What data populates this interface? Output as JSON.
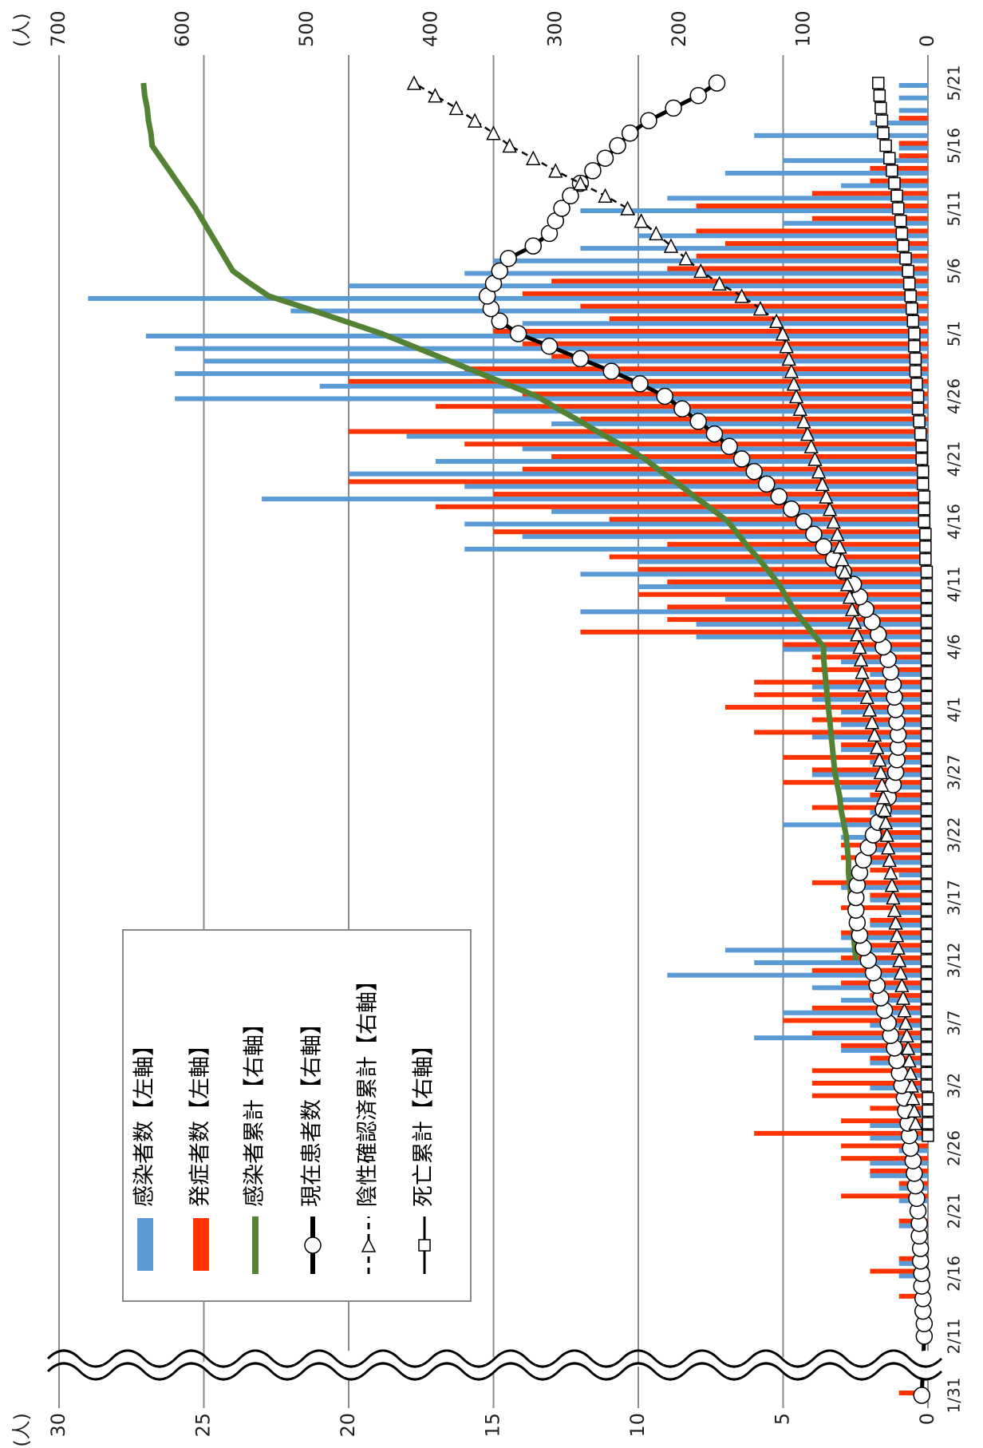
{
  "chart_data": {
    "type": "combo",
    "ylabel": "(人)",
    "y2label": "(人)",
    "categories": [
      "1/31",
      "2/11",
      null,
      null,
      null,
      null,
      "2/16",
      null,
      null,
      null,
      null,
      "2/21",
      null,
      null,
      null,
      null,
      "2/26",
      null,
      null,
      null,
      null,
      "3/2",
      null,
      null,
      null,
      null,
      "3/7",
      null,
      null,
      null,
      null,
      "3/12",
      null,
      null,
      null,
      null,
      "3/17",
      null,
      null,
      null,
      null,
      "3/22",
      null,
      null,
      null,
      null,
      "3/27",
      null,
      null,
      null,
      null,
      "4/1",
      null,
      null,
      null,
      null,
      "4/6",
      null,
      null,
      null,
      null,
      "4/11",
      null,
      null,
      null,
      null,
      "4/16",
      null,
      null,
      null,
      null,
      "4/21",
      null,
      null,
      null,
      null,
      "4/26",
      null,
      null,
      null,
      null,
      "5/1",
      null,
      null,
      null,
      null,
      "5/6",
      null,
      null,
      null,
      null,
      "5/11",
      null,
      null,
      null,
      null,
      "5/16",
      null,
      null,
      null,
      null,
      "5/21"
    ],
    "ylim": [
      0,
      30
    ],
    "yticks": [
      0,
      5,
      10,
      15,
      20,
      25,
      30
    ],
    "y2lim": [
      0,
      700
    ],
    "y2ticks": [
      0,
      100,
      200,
      300,
      400,
      500,
      600,
      700
    ],
    "grid": true,
    "series": [
      {
        "name": "感染者数【左軸】",
        "type": "bar",
        "color": "#5b9bd5",
        "values": [
          0,
          0,
          0,
          0,
          0,
          0,
          1,
          1,
          0,
          0,
          1,
          0,
          1,
          1,
          2,
          2,
          1,
          2,
          2,
          1,
          0,
          2,
          1,
          2,
          3,
          6,
          2,
          5,
          3,
          4,
          9,
          6,
          7,
          3,
          2,
          1,
          2,
          3,
          1,
          2,
          2,
          3,
          5,
          2,
          3,
          3,
          4,
          2,
          3,
          4,
          3,
          3,
          4,
          4,
          2,
          3,
          5,
          8,
          8,
          12,
          7,
          10,
          12,
          10,
          16,
          14,
          16,
          13,
          23,
          16,
          20,
          17,
          14,
          18,
          13,
          15,
          26,
          21,
          26,
          25,
          26,
          27,
          14,
          22,
          29,
          20,
          16,
          15,
          12,
          10,
          5,
          12,
          9,
          3,
          7,
          5,
          1,
          6,
          2,
          1,
          1,
          1
        ]
      },
      {
        "name": "発症者数【左軸】",
        "type": "bar",
        "color": "#ff3300",
        "values": [
          1,
          0,
          0,
          0,
          1,
          0,
          2,
          1,
          0,
          0,
          1,
          0,
          3,
          1,
          2,
          3,
          3,
          6,
          3,
          2,
          4,
          4,
          4,
          2,
          3,
          4,
          5,
          4,
          2,
          3,
          4,
          3,
          2,
          3,
          2,
          3,
          2,
          4,
          2,
          3,
          3,
          2,
          3,
          4,
          2,
          5,
          4,
          5,
          3,
          6,
          4,
          7,
          6,
          6,
          4,
          4,
          5,
          12,
          9,
          9,
          10,
          9,
          10,
          11,
          9,
          15,
          11,
          17,
          15,
          20,
          14,
          13,
          16,
          20,
          12,
          17,
          14,
          20,
          16,
          13,
          14,
          15,
          11,
          12,
          14,
          13,
          9,
          8,
          7,
          8,
          4,
          8,
          4,
          2,
          2,
          1,
          1,
          0,
          1,
          0,
          0,
          0
        ]
      },
      {
        "name": "感染者累計【右軸】",
        "type": "line",
        "axis": "y2",
        "color": "#548235",
        "marker": "none",
        "values": [
          null,
          null,
          null,
          null,
          null,
          null,
          null,
          null,
          null,
          null,
          null,
          null,
          null,
          null,
          null,
          null,
          null,
          null,
          null,
          null,
          null,
          null,
          null,
          null,
          null,
          null,
          null,
          null,
          null,
          null,
          null,
          58,
          59,
          60,
          60,
          61,
          62,
          63,
          64,
          64,
          65,
          66,
          68,
          70,
          71,
          73,
          75,
          76,
          77,
          78,
          79,
          80,
          81,
          82,
          83,
          84,
          84,
          92,
          100,
          108,
          114,
          120,
          128,
          136,
          145,
          153,
          161,
          174,
          188,
          201,
          215,
          228,
          245,
          263,
          280,
          298,
          315,
          340,
          365,
          390,
          415,
          440,
          470,
          500,
          531,
          546,
          560,
          566,
          572,
          578,
          584,
          590,
          597,
          604,
          611,
          618,
          625,
          626,
          628,
          629,
          631,
          632
        ]
      },
      {
        "name": "現在患者数【右軸】",
        "type": "line",
        "axis": "y2",
        "color": "#000000",
        "marker": "circle",
        "values": [
          5,
          3,
          3,
          4,
          4,
          5,
          5,
          6,
          6,
          7,
          7,
          8,
          9,
          10,
          11,
          12,
          14,
          15,
          16,
          18,
          19,
          21,
          23,
          25,
          27,
          30,
          32,
          35,
          38,
          41,
          44,
          48,
          52,
          55,
          57,
          58,
          58,
          57,
          55,
          52,
          48,
          44,
          40,
          36,
          32,
          28,
          26,
          25,
          24,
          24,
          25,
          26,
          27,
          28,
          30,
          32,
          36,
          40,
          45,
          50,
          55,
          60,
          68,
          76,
          84,
          92,
          100,
          110,
          120,
          130,
          140,
          150,
          160,
          172,
          185,
          198,
          212,
          232,
          255,
          280,
          305,
          330,
          345,
          352,
          355,
          350,
          345,
          338,
          318,
          305,
          300,
          295,
          288,
          280,
          270,
          260,
          250,
          240,
          225,
          205,
          185,
          170
        ]
      },
      {
        "name": "陰性確認済累計【右軸】",
        "type": "line",
        "axis": "y2",
        "color": "#000000",
        "marker": "triangle",
        "dash": true,
        "values": [
          null,
          null,
          null,
          null,
          null,
          null,
          null,
          null,
          null,
          null,
          null,
          null,
          null,
          null,
          null,
          null,
          null,
          null,
          10,
          11,
          12,
          13,
          14,
          15,
          16,
          17,
          18,
          19,
          20,
          21,
          22,
          23,
          24,
          25,
          26,
          27,
          28,
          29,
          30,
          31,
          32,
          33,
          34,
          35,
          36,
          37,
          38,
          39,
          41,
          43,
          45,
          47,
          49,
          51,
          53,
          54,
          55,
          57,
          59,
          61,
          63,
          65,
          67,
          69,
          71,
          73,
          76,
          79,
          82,
          85,
          88,
          91,
          94,
          97,
          100,
          103,
          106,
          108,
          110,
          112,
          114,
          117,
          122,
          135,
          150,
          168,
          183,
          195,
          207,
          219,
          231,
          242,
          260,
          280,
          300,
          318,
          337,
          350,
          365,
          380,
          397,
          414
        ]
      },
      {
        "name": "死亡累計【右軸】",
        "type": "line",
        "axis": "y2",
        "color": "#000000",
        "marker": "square",
        "values": [
          null,
          null,
          null,
          null,
          null,
          null,
          null,
          null,
          null,
          null,
          null,
          null,
          null,
          null,
          null,
          null,
          null,
          0,
          0,
          0,
          0,
          1,
          1,
          1,
          1,
          1,
          1,
          1,
          1,
          1,
          1,
          1,
          1,
          1,
          1,
          1,
          1,
          1,
          1,
          1,
          1,
          1,
          1,
          1,
          1,
          1,
          1,
          1,
          1,
          1,
          1,
          1,
          1,
          1,
          1,
          1,
          1,
          1,
          1,
          1,
          1,
          1,
          1,
          2,
          2,
          2,
          3,
          3,
          3,
          4,
          4,
          5,
          5,
          6,
          7,
          8,
          8,
          9,
          10,
          10,
          11,
          11,
          12,
          13,
          14,
          15,
          16,
          18,
          20,
          21,
          22,
          24,
          25,
          27,
          29,
          31,
          34,
          36,
          37,
          38,
          39,
          40
        ]
      }
    ]
  }
}
